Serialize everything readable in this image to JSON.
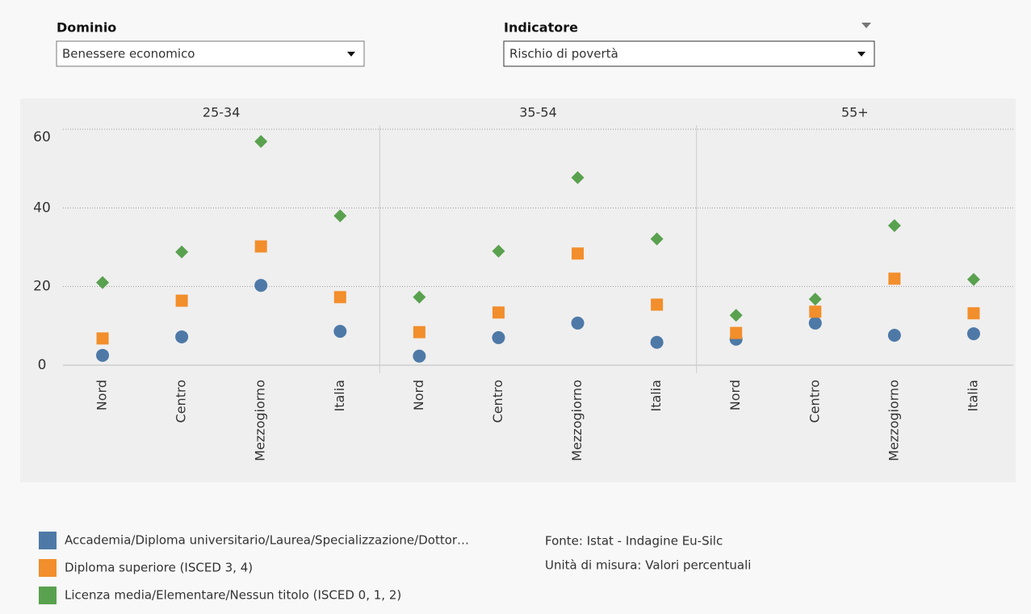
{
  "filters": [
    {
      "label": "Dominio",
      "value": "Benessere economico"
    },
    {
      "label": "Indicatore",
      "value": "Rischio di povertà"
    }
  ],
  "chart_data": {
    "type": "dot",
    "facets": [
      "25-34",
      "35-54",
      "55+"
    ],
    "categories": [
      "Nord",
      "Centro",
      "Mezzogiorno",
      "Italia"
    ],
    "ylim": [
      0,
      60
    ],
    "yticks": [
      0,
      20,
      40,
      60
    ],
    "grid": true,
    "series": [
      {
        "name": "Accademia/Diploma universitario/Laurea/Specializzazione/Dottor…",
        "color": "#4e79a7",
        "marker": "circle",
        "values": [
          [
            2.5,
            7.2,
            20.3,
            8.6
          ],
          [
            2.3,
            7.0,
            10.7,
            5.8
          ],
          [
            6.6,
            10.7,
            7.6,
            8.0
          ]
        ]
      },
      {
        "name": "Diploma superiore (ISCED 3, 4)",
        "color": "#f28e2b",
        "marker": "square",
        "values": [
          [
            6.8,
            16.4,
            30.2,
            17.3
          ],
          [
            8.4,
            13.4,
            28.4,
            15.4
          ],
          [
            8.2,
            13.6,
            22.0,
            13.2
          ]
        ]
      },
      {
        "name": "Licenza media/Elementare/Nessun titolo (ISCED 0, 1, 2)",
        "color": "#59a14f",
        "marker": "diamond",
        "values": [
          [
            21.0,
            28.8,
            56.9,
            38.0
          ],
          [
            17.3,
            29.0,
            47.7,
            32.1
          ],
          [
            12.7,
            16.8,
            35.5,
            21.8
          ]
        ]
      }
    ]
  },
  "notes": [
    "Fonte: Istat - Indagine Eu-Silc",
    "Unità di misura: Valori percentuali"
  ]
}
